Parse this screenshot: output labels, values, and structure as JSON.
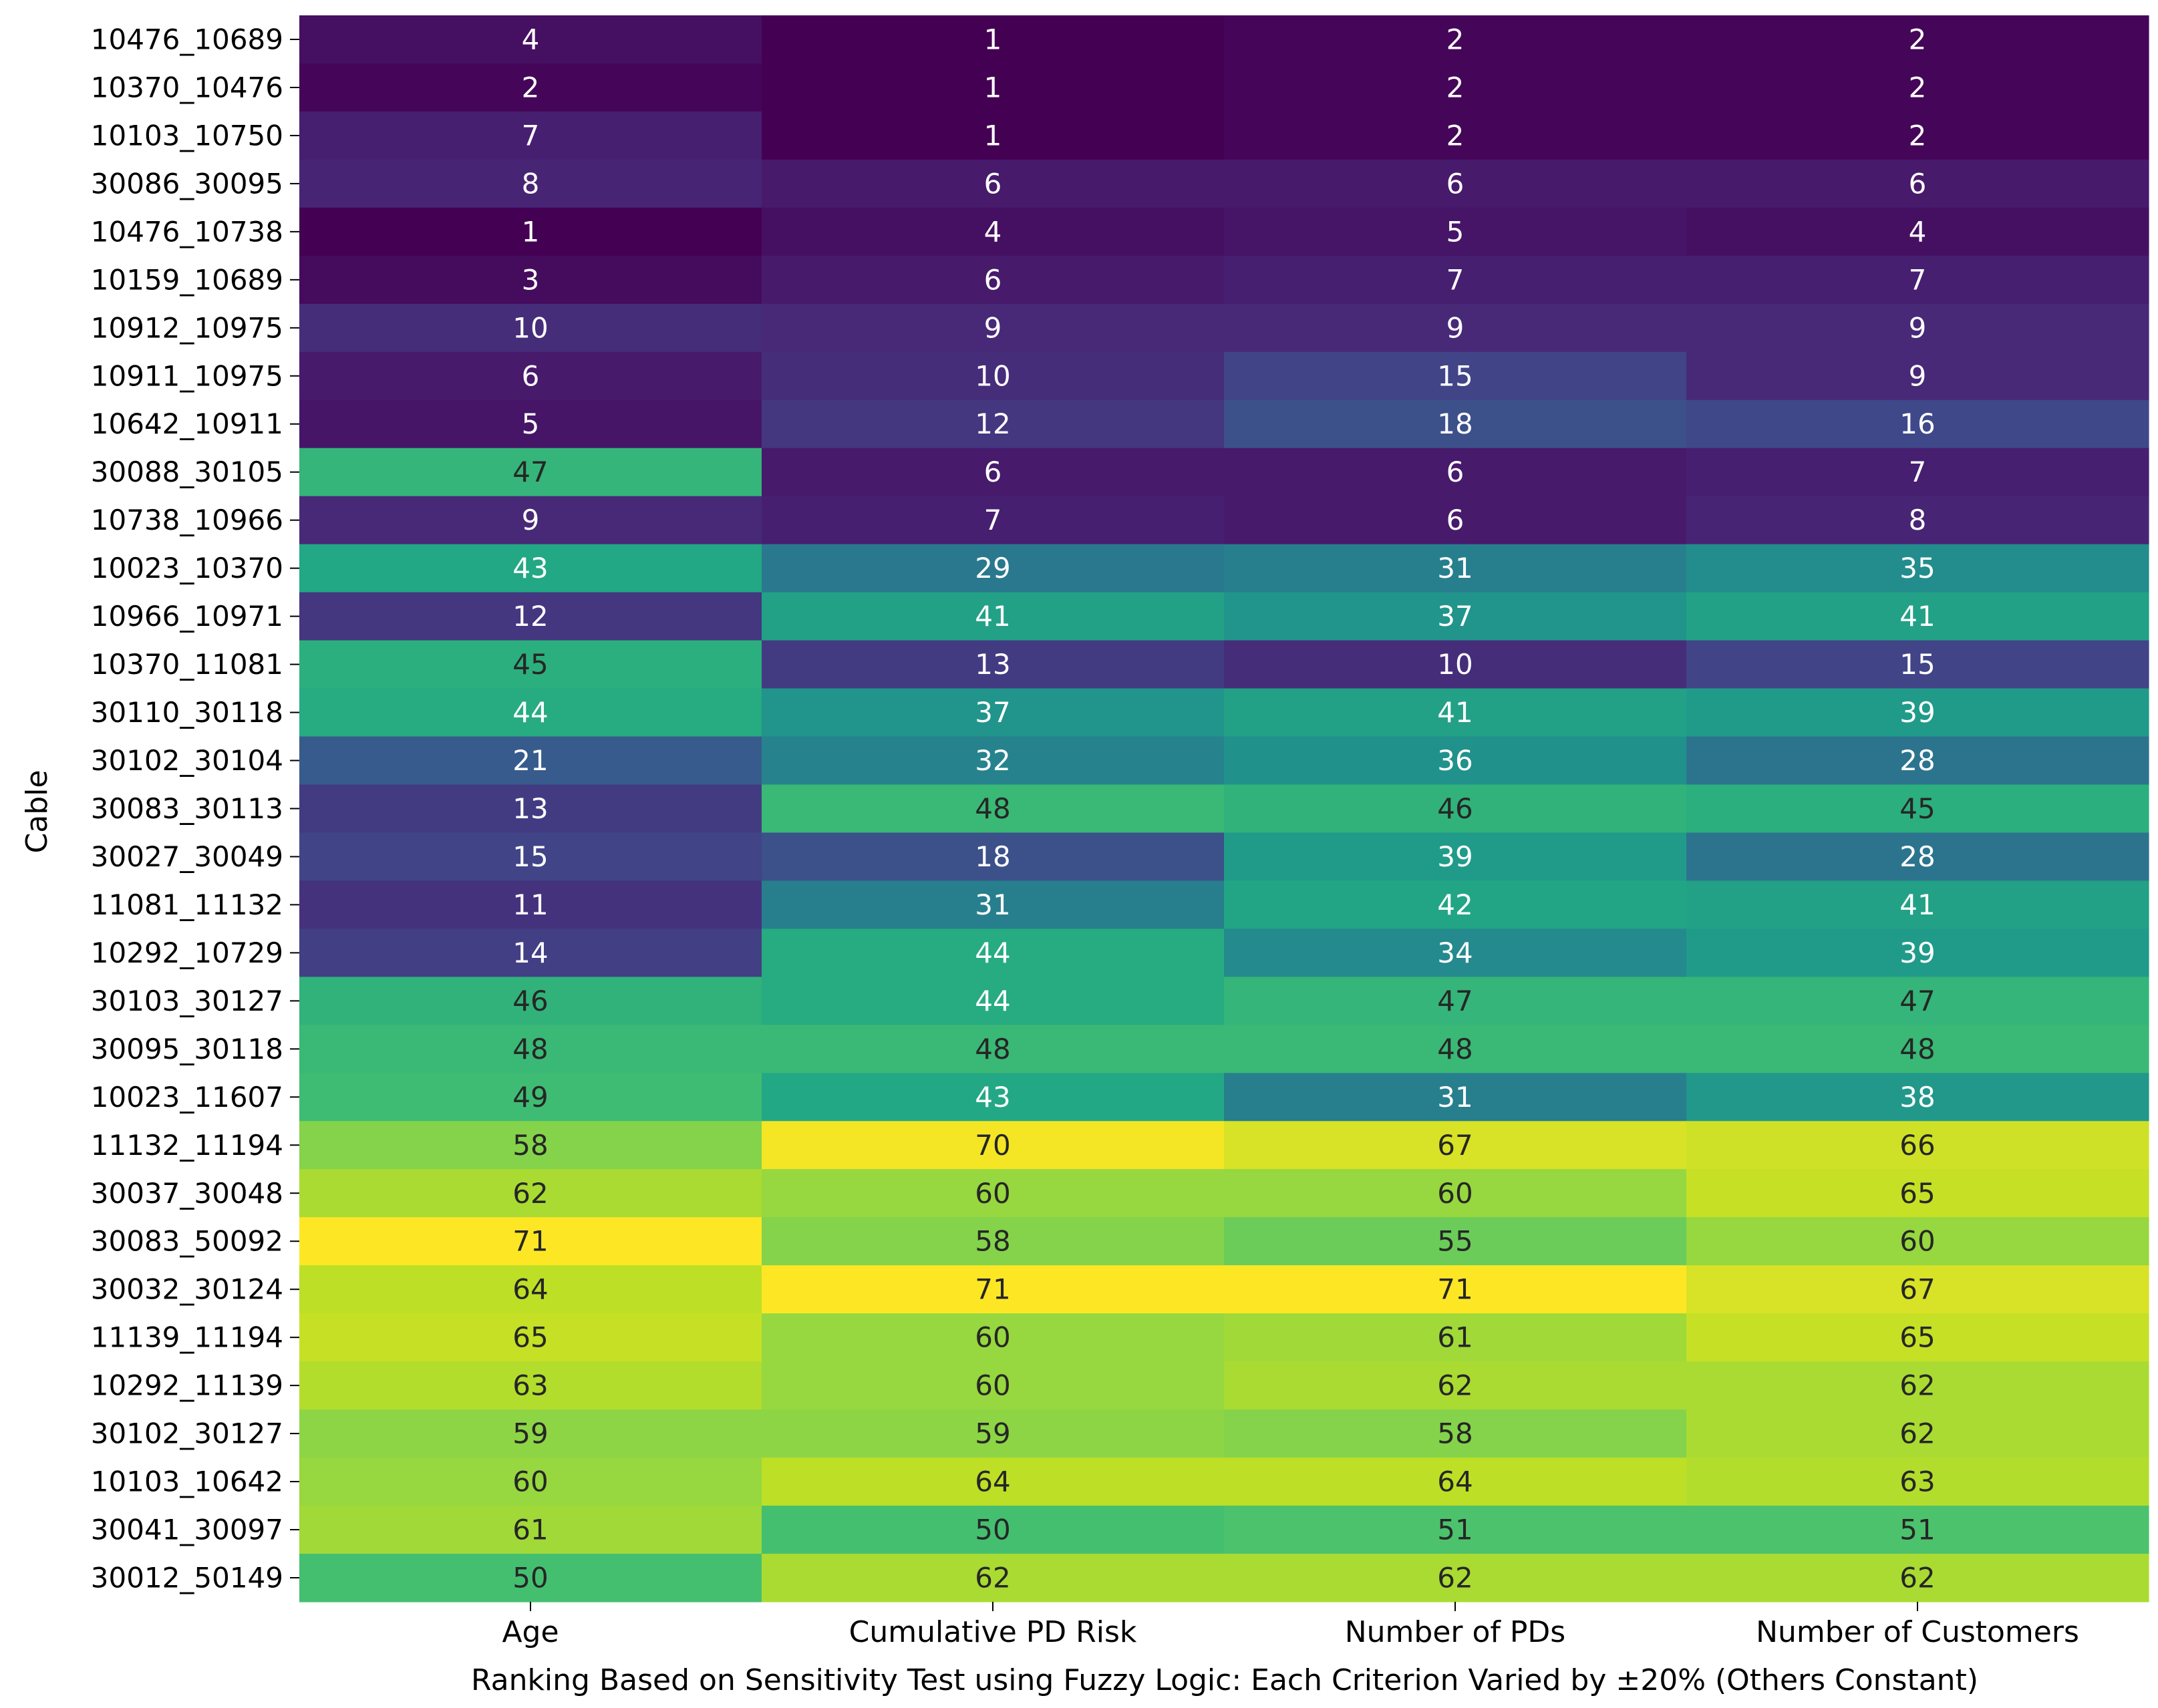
{
  "chart_data": {
    "type": "heatmap",
    "xlabel": "Ranking Based on Sensitivity Test using Fuzzy Logic: Each Criterion Varied by ±20% (Others Constant)",
    "ylabel": "Cable",
    "columns": [
      "Age",
      "Cumulative PD Risk",
      "Number of PDs",
      "Number of Customers"
    ],
    "rows": [
      "10476_10689",
      "10370_10476",
      "10103_10750",
      "30086_30095",
      "10476_10738",
      "10159_10689",
      "10912_10975",
      "10911_10975",
      "10642_10911",
      "30088_30105",
      "10738_10966",
      "10023_10370",
      "10966_10971",
      "10370_11081",
      "30110_30118",
      "30102_30104",
      "30083_30113",
      "30027_30049",
      "11081_11132",
      "10292_10729",
      "30103_30127",
      "30095_30118",
      "10023_11607",
      "11132_11194",
      "30037_30048",
      "30083_50092",
      "30032_30124",
      "11139_11194",
      "10292_11139",
      "30102_30127",
      "10103_10642",
      "30041_30097",
      "30012_50149"
    ],
    "values": [
      [
        4,
        1,
        2,
        2
      ],
      [
        2,
        1,
        2,
        2
      ],
      [
        7,
        1,
        2,
        2
      ],
      [
        8,
        6,
        6,
        6
      ],
      [
        1,
        4,
        5,
        4
      ],
      [
        3,
        6,
        7,
        7
      ],
      [
        10,
        9,
        9,
        9
      ],
      [
        6,
        10,
        15,
        9
      ],
      [
        5,
        12,
        18,
        16
      ],
      [
        47,
        6,
        6,
        7
      ],
      [
        9,
        7,
        6,
        8
      ],
      [
        43,
        29,
        31,
        35
      ],
      [
        12,
        41,
        37,
        41
      ],
      [
        45,
        13,
        10,
        15
      ],
      [
        44,
        37,
        41,
        39
      ],
      [
        21,
        32,
        36,
        28
      ],
      [
        13,
        48,
        46,
        45
      ],
      [
        15,
        18,
        39,
        28
      ],
      [
        11,
        31,
        42,
        41
      ],
      [
        14,
        44,
        34,
        39
      ],
      [
        46,
        44,
        47,
        47
      ],
      [
        48,
        48,
        48,
        48
      ],
      [
        49,
        43,
        31,
        38
      ],
      [
        58,
        70,
        67,
        66
      ],
      [
        62,
        60,
        60,
        65
      ],
      [
        71,
        58,
        55,
        60
      ],
      [
        64,
        71,
        71,
        67
      ],
      [
        65,
        60,
        61,
        65
      ],
      [
        63,
        60,
        62,
        62
      ],
      [
        59,
        59,
        58,
        62
      ],
      [
        60,
        64,
        64,
        63
      ],
      [
        61,
        50,
        51,
        51
      ],
      [
        50,
        62,
        62,
        62
      ]
    ],
    "vmin": 1,
    "vmax": 71,
    "colormap": "viridis",
    "colorbar": false,
    "annotations": true,
    "text_colors": {
      "light": "#ffffff",
      "dark": "#262626"
    }
  }
}
